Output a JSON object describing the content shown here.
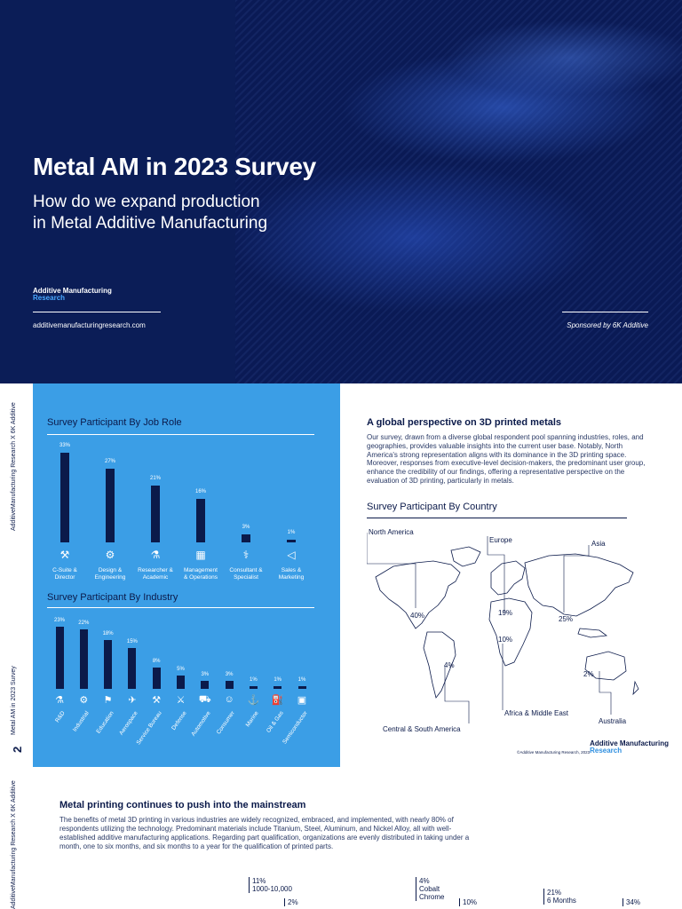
{
  "hero": {
    "title": "Metal AM in 2023 Survey",
    "subtitle_line1": "How do we expand production",
    "subtitle_line2": "in Metal Additive Manufacturing",
    "brand_line1": "Additive Manufacturing",
    "brand_line2": "Research",
    "url": "additivemanufacturingresearch.com",
    "sponsor": "Sponsored by 6K Additive"
  },
  "sidebar": {
    "top_text": "AdditiveManufacturing Research  X  6K Additive",
    "mid_text": "Metal AM in 2023 Survey",
    "page_number": "2",
    "bottom_text": "AdditiveManufacturing Research  X  6K Additive"
  },
  "job_role_chart": {
    "title": "Survey Participant By Job Role",
    "icons": [
      "briefcase-icon",
      "gear-icon",
      "flask-icon",
      "chart-icon",
      "handshake-icon",
      "megaphone-icon"
    ]
  },
  "industry_chart": {
    "title": "Survey Participant By Industry"
  },
  "chart_data": [
    {
      "type": "bar",
      "title": "Survey Participant By Job Role",
      "categories": [
        "C-Suite & Director",
        "Design & Engineering",
        "Researcher & Academic",
        "Management & Operations",
        "Consultant & Specialist",
        "Sales & Marketing"
      ],
      "values": [
        33,
        27,
        21,
        16,
        3,
        1
      ],
      "value_labels": [
        "33%",
        "27%",
        "21%",
        "16%",
        "3%",
        "1%"
      ],
      "ylim": [
        0,
        33
      ]
    },
    {
      "type": "bar",
      "title": "Survey Participant By Industry",
      "categories": [
        "R&D",
        "Industrial",
        "Education",
        "Aerospace",
        "Service Bureau",
        "Defense",
        "Automotive",
        "Consumer",
        "Marine",
        "Oil & Gas",
        "Semiconductor"
      ],
      "values": [
        23,
        22,
        18,
        15,
        8,
        5,
        3,
        3,
        1,
        1,
        1
      ],
      "value_labels": [
        "23%",
        "22%",
        "18%",
        "15%",
        "8%",
        "5%",
        "3%",
        "3%",
        "1%",
        "1%",
        "1%"
      ],
      "ylim": [
        0,
        23
      ]
    }
  ],
  "right": {
    "title": "A global perspective on 3D printed metals",
    "body": "Our survey, drawn from a diverse global respondent pool spanning industries, roles, and geographies, provides valuable insights into the current user base. Notably, North America's strong representation aligns with its dominance in the 3D printing space. Moreover, responses from executive-level decision-makers, the predominant user group, enhance the credibility of our findings, offering a representative perspective on the evaluation of 3D printing, particularly in metals.",
    "country_title": "Survey Participant By Country",
    "regions": [
      {
        "name": "North America",
        "pct": "40%"
      },
      {
        "name": "Europe",
        "pct": "19%"
      },
      {
        "name": "Asia",
        "pct": "25%"
      },
      {
        "name": "Africa & Middle East",
        "pct": "10%"
      },
      {
        "name": "Central & South America",
        "pct": "4%"
      },
      {
        "name": "Australia",
        "pct": "2%"
      }
    ],
    "brand_line1": "Additive Manufacturing",
    "brand_line2": "Research",
    "copyright": "©Additive Manufacturing Research, 2023"
  },
  "bottom": {
    "title": "Metal printing continues to push into the mainstream",
    "body": "The benefits of metal 3D printing in various industries are widely recognized, embraced, and implemented, with nearly 80% of respondents utilizing the technology. Predominant materials include Titanium, Steel, Aluminum, and Nickel Alloy, all with well-established additive manufacturing applications. Regarding part qualification, organizations are evenly distributed in taking under a month, one to six months, and six months to a year for the qualification of printed parts.",
    "mini1_pct": "11%",
    "mini1_label": "1000-10,000",
    "mini2_pct": "2%",
    "mini3_pct": "4%",
    "mini3_label1": "Cobalt",
    "mini3_label2": "Chrome",
    "mini4_pct": "10%",
    "mini5_pct": "21%",
    "mini5_label": "6 Months",
    "mini6_pct": "34%"
  }
}
